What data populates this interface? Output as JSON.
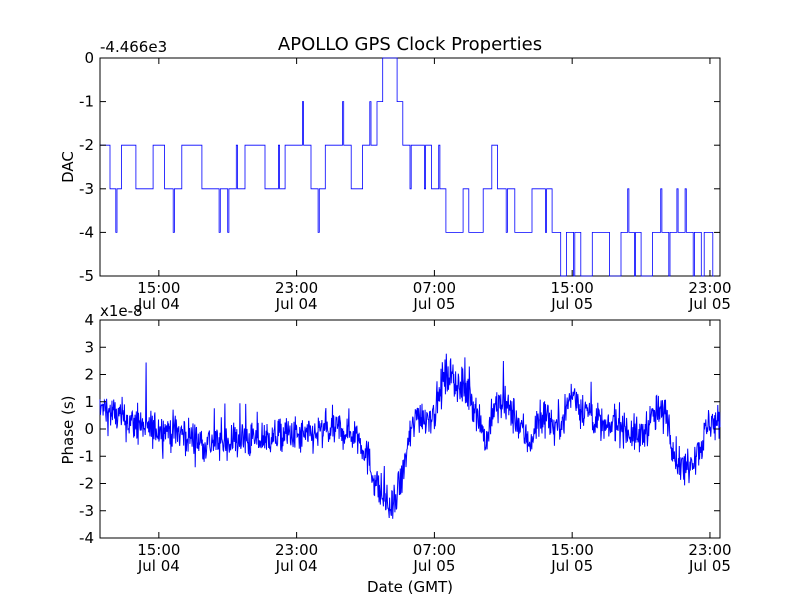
{
  "chart_data": [
    {
      "type": "line",
      "title": "APOLLO GPS Clock Properties",
      "ylabel": "DAC",
      "offset_label": "-4.466e3",
      "ylim": [
        -5,
        0
      ],
      "yticks": [
        "0",
        "-1",
        "-2",
        "-3",
        "-4",
        "-5"
      ],
      "xticks": [
        {
          "time": "15:00",
          "date": "Jul 04"
        },
        {
          "time": "23:00",
          "date": "Jul 04"
        },
        {
          "time": "07:00",
          "date": "Jul 05"
        },
        {
          "time": "15:00",
          "date": "Jul 05"
        },
        {
          "time": "23:00",
          "date": "Jul 05"
        }
      ],
      "xlim": [
        "Jul 04 11:35",
        "Jul 05 23:35"
      ],
      "grid": false,
      "series": [
        {
          "color": "#0000ff",
          "segments": [
            [
              "Jul 04 11:35",
              -2
            ],
            [
              "Jul 04 12:10",
              -3
            ],
            [
              "Jul 04 12:50",
              -2
            ],
            [
              "Jul 04 13:40",
              -3
            ],
            [
              "Jul 04 14:40",
              -2
            ],
            [
              "Jul 04 15:20",
              -3
            ],
            [
              "Jul 04 16:20",
              -2
            ],
            [
              "Jul 04 17:30",
              -3
            ],
            [
              "Jul 04 20:00",
              -2
            ],
            [
              "Jul 04 21:10",
              -3
            ],
            [
              "Jul 04 22:20",
              -2
            ],
            [
              "Jul 04 23:50",
              -3
            ],
            [
              "Jul 05 00:40",
              -2
            ],
            [
              "Jul 05 02:10",
              -3
            ],
            [
              "Jul 05 02:50",
              -2
            ],
            [
              "Jul 05 03:40",
              -1
            ],
            [
              "Jul 05 04:00",
              0
            ],
            [
              "Jul 05 04:50",
              -1
            ],
            [
              "Jul 05 05:10",
              -2
            ],
            [
              "Jul 05 06:50",
              -3
            ],
            [
              "Jul 05 07:40",
              -4
            ],
            [
              "Jul 05 08:40",
              -3
            ],
            [
              "Jul 05 09:00",
              -4
            ],
            [
              "Jul 05 09:50",
              -3
            ],
            [
              "Jul 05 10:20",
              -2
            ],
            [
              "Jul 05 10:40",
              -3
            ],
            [
              "Jul 05 11:40",
              -4
            ],
            [
              "Jul 05 12:40",
              -3
            ],
            [
              "Jul 05 13:50",
              -4
            ],
            [
              "Jul 05 14:20",
              -5
            ],
            [
              "Jul 05 14:40",
              -4
            ],
            [
              "Jul 05 15:30",
              -5
            ],
            [
              "Jul 05 16:10",
              -4
            ],
            [
              "Jul 05 17:10",
              -5
            ],
            [
              "Jul 05 17:50",
              -4
            ],
            [
              "Jul 05 19:00",
              -5
            ],
            [
              "Jul 05 19:40",
              -4
            ],
            [
              "Jul 05 22:30",
              -5
            ],
            [
              "Jul 05 22:40",
              -4
            ],
            [
              "Jul 05 23:10",
              -5
            ],
            [
              "Jul 05 23:35",
              -5
            ]
          ]
        }
      ]
    },
    {
      "type": "line",
      "ylabel": "Phase (s)",
      "xlabel": "Date (GMT)",
      "offset_label": "x1e-8",
      "ylim": [
        -4,
        4
      ],
      "yticks": [
        "4",
        "3",
        "2",
        "1",
        "0",
        "-1",
        "-2",
        "-3",
        "-4"
      ],
      "xticks": [
        {
          "time": "15:00",
          "date": "Jul 04"
        },
        {
          "time": "23:00",
          "date": "Jul 04"
        },
        {
          "time": "07:00",
          "date": "Jul 05"
        },
        {
          "time": "15:00",
          "date": "Jul 05"
        },
        {
          "time": "23:00",
          "date": "Jul 05"
        }
      ],
      "xlim": [
        "Jul 04 11:35",
        "Jul 05 23:35"
      ],
      "grid": false,
      "series": [
        {
          "color": "#0000ff",
          "x": [
            "Jul 04 11:35",
            "Jul 04 12:30",
            "Jul 04 13:30",
            "Jul 04 14:30",
            "Jul 04 15:30",
            "Jul 04 16:30",
            "Jul 04 17:30",
            "Jul 04 18:30",
            "Jul 04 19:30",
            "Jul 04 20:30",
            "Jul 04 21:30",
            "Jul 04 22:30",
            "Jul 04 23:30",
            "Jul 05 00:30",
            "Jul 05 01:30",
            "Jul 05 02:30",
            "Jul 05 03:00",
            "Jul 05 03:30",
            "Jul 05 04:00",
            "Jul 05 04:30",
            "Jul 05 05:00",
            "Jul 05 05:30",
            "Jul 05 06:00",
            "Jul 05 06:30",
            "Jul 05 07:00",
            "Jul 05 07:30",
            "Jul 05 08:00",
            "Jul 05 08:30",
            "Jul 05 09:00",
            "Jul 05 09:30",
            "Jul 05 10:00",
            "Jul 05 10:30",
            "Jul 05 11:00",
            "Jul 05 11:30",
            "Jul 05 12:00",
            "Jul 05 12:30",
            "Jul 05 13:00",
            "Jul 05 13:30",
            "Jul 05 14:00",
            "Jul 05 14:30",
            "Jul 05 15:00",
            "Jul 05 15:30",
            "Jul 05 16:00",
            "Jul 05 16:30",
            "Jul 05 17:00",
            "Jul 05 17:30",
            "Jul 05 18:00",
            "Jul 05 18:30",
            "Jul 05 19:00",
            "Jul 05 19:30",
            "Jul 05 20:00",
            "Jul 05 20:30",
            "Jul 05 21:00",
            "Jul 05 21:30",
            "Jul 05 22:00",
            "Jul 05 22:30",
            "Jul 05 23:00",
            "Jul 05 23:35"
          ],
          "values": [
            0.8,
            0.5,
            0.2,
            0.0,
            0.0,
            -0.2,
            -0.5,
            -0.5,
            -0.4,
            -0.4,
            -0.3,
            -0.2,
            -0.3,
            -0.1,
            0.0,
            -0.2,
            -0.8,
            -1.8,
            -2.5,
            -3.0,
            -2.2,
            -0.5,
            0.6,
            0.4,
            0.6,
            1.8,
            2.1,
            1.4,
            1.3,
            0.6,
            -0.5,
            0.8,
            0.9,
            0.6,
            0.1,
            -0.5,
            0.2,
            0.6,
            0.0,
            0.5,
            1.3,
            0.8,
            0.6,
            0.3,
            -0.1,
            0.3,
            0.1,
            -0.2,
            -0.3,
            0.3,
            0.6,
            0.5,
            -1.0,
            -1.5,
            -1.0,
            -0.6,
            0.3,
            0.2
          ]
        }
      ]
    }
  ]
}
